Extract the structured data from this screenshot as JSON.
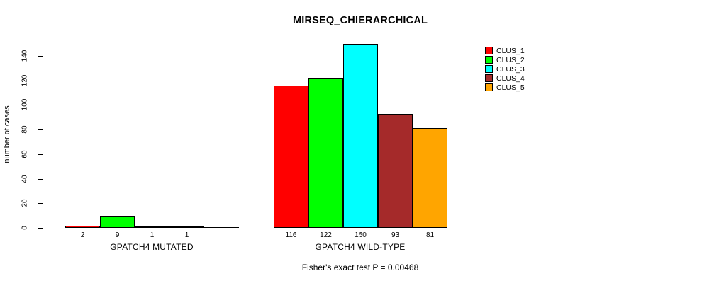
{
  "chart_data": {
    "type": "bar",
    "title": "MIRSEQ_CHIERARCHICAL",
    "ylabel": "number of cases",
    "ylim": [
      0,
      150
    ],
    "yticks": [
      0,
      20,
      40,
      60,
      80,
      100,
      120,
      140
    ],
    "grid": false,
    "legend_position": "right",
    "categories": [
      "GPATCH4 MUTATED",
      "GPATCH4 WILD-TYPE"
    ],
    "series": [
      {
        "name": "CLUS_1",
        "color": "#FF0000",
        "values": [
          2,
          116
        ]
      },
      {
        "name": "CLUS_2",
        "color": "#00FF00",
        "values": [
          9,
          122
        ]
      },
      {
        "name": "CLUS_3",
        "color": "#00FFFF",
        "values": [
          1,
          150
        ]
      },
      {
        "name": "CLUS_4",
        "color": "#A52A2A",
        "values": [
          1,
          93
        ]
      },
      {
        "name": "CLUS_5",
        "color": "#FFA500",
        "values": [
          0,
          81
        ]
      }
    ],
    "bar_value_labels": [
      [
        "2",
        "9",
        "1",
        "1",
        ""
      ],
      [
        "116",
        "122",
        "150",
        "93",
        "81"
      ]
    ],
    "annotation": "Fisher's exact test P = 0.00468"
  }
}
